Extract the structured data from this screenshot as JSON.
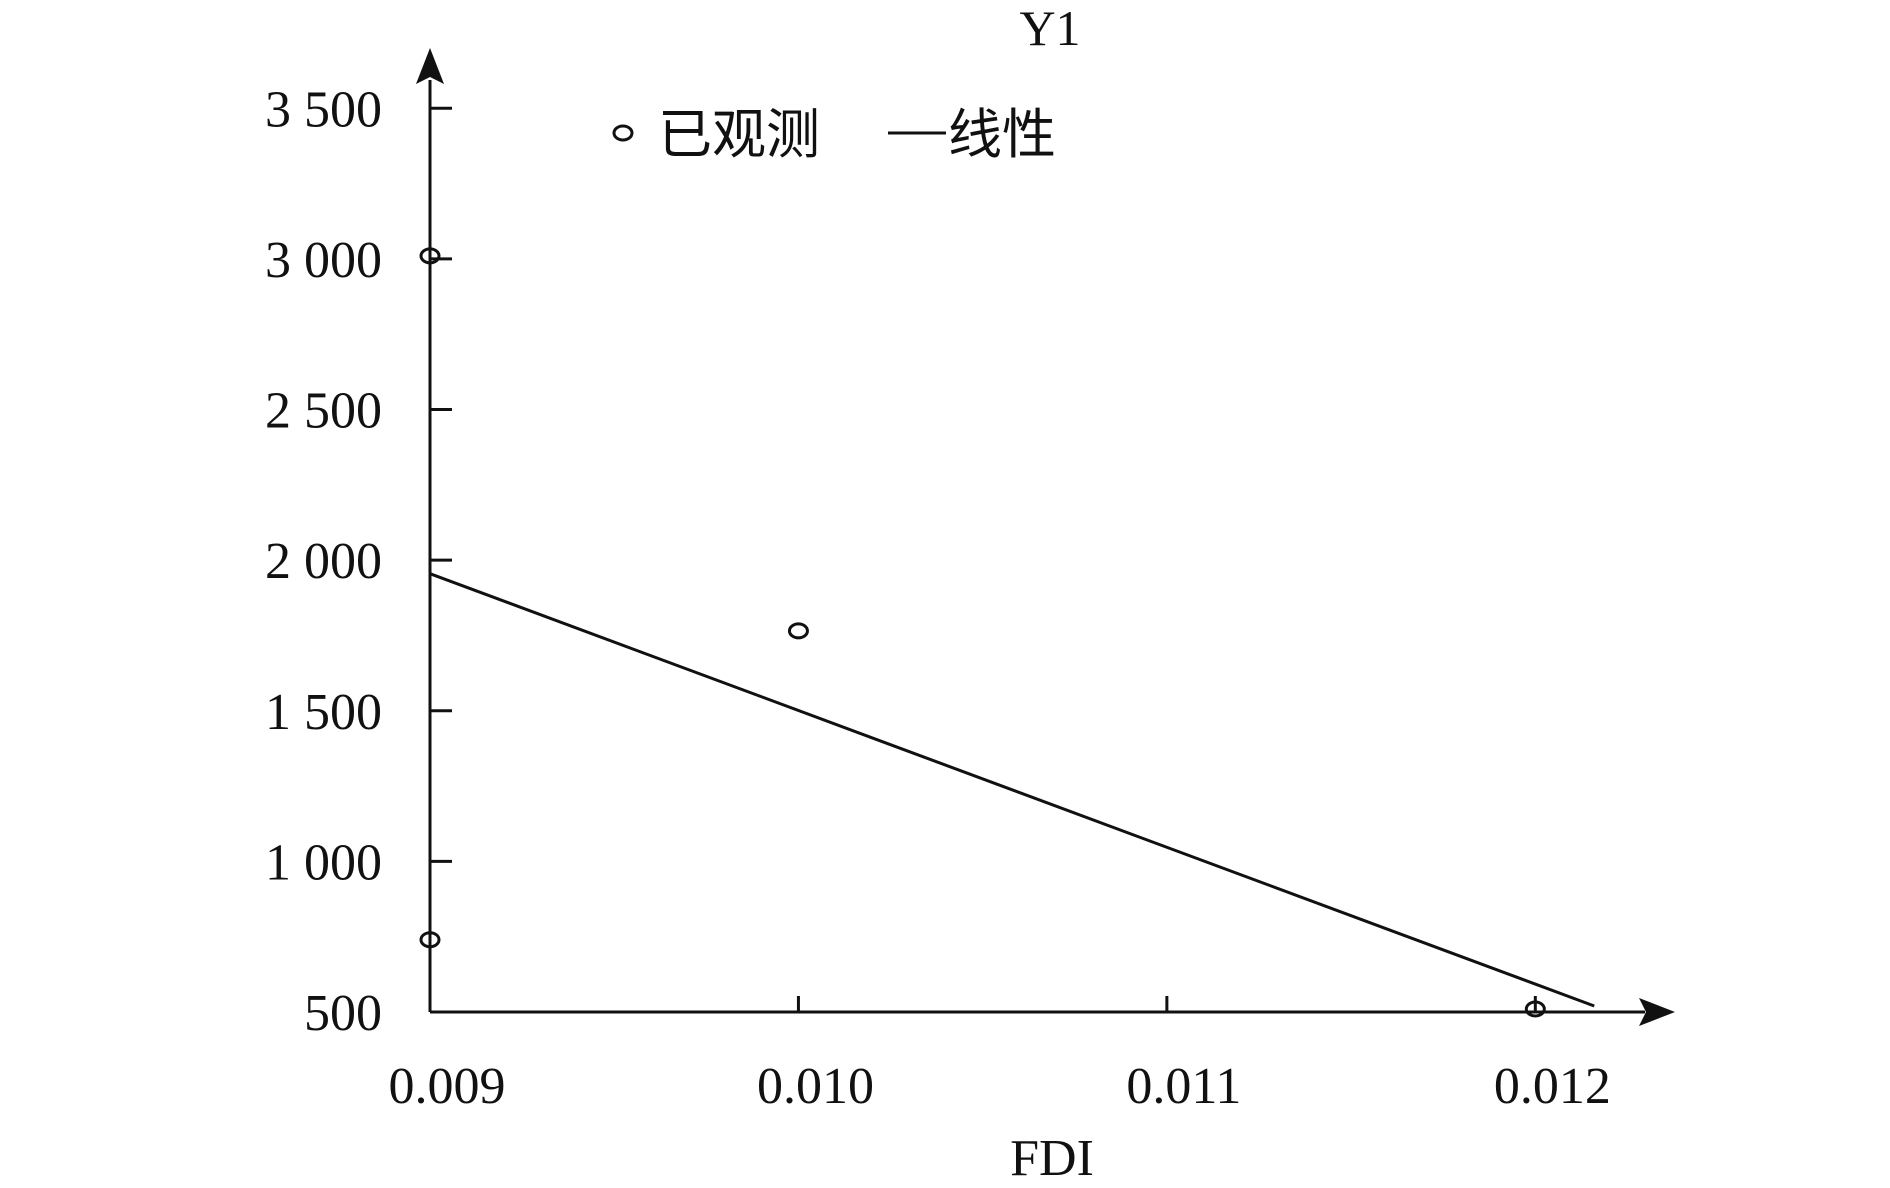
{
  "chart_data": {
    "type": "scatter",
    "title": "Y1",
    "xlabel": "FDI",
    "ylabel": "",
    "xlim": [
      0.009,
      0.0122
    ],
    "ylim": [
      500,
      3700
    ],
    "x_ticks": [
      0.009,
      0.01,
      0.011,
      0.012
    ],
    "x_tick_labels": [
      "0.009",
      "0.010",
      "0.011",
      "0.012"
    ],
    "y_ticks": [
      500,
      1000,
      1500,
      2000,
      2500,
      3000,
      3500
    ],
    "y_tick_labels": [
      "500",
      "1 000",
      "1 500",
      "2 000",
      "2 500",
      "3 000",
      "3 500"
    ],
    "legend": {
      "position": "top-left",
      "observed_label": "已观测",
      "linear_label": "线性"
    },
    "series": [
      {
        "kind": "observed",
        "points": [
          {
            "x": 0.009,
            "y": 3010
          },
          {
            "x": 0.009,
            "y": 740
          },
          {
            "x": 0.01,
            "y": 1765
          },
          {
            "x": 0.012,
            "y": 510
          }
        ]
      },
      {
        "kind": "linear",
        "points": [
          {
            "x": 0.009,
            "y": 1955
          },
          {
            "x": 0.01216,
            "y": 520
          }
        ]
      }
    ],
    "grid": false
  }
}
